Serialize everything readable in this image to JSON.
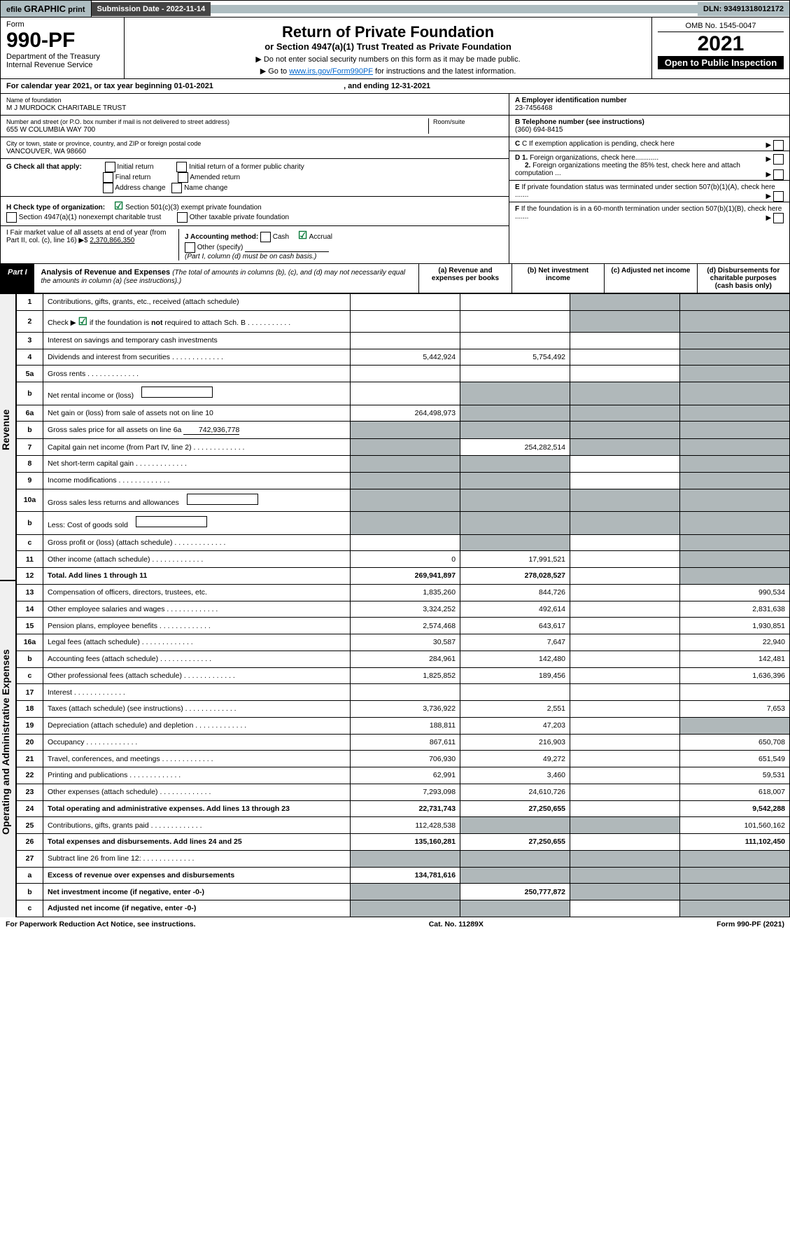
{
  "topbar": {
    "efile_pre": "efile",
    "efile_bold": "GRAPHIC",
    "efile_post": "print",
    "sub": "Submission Date - 2022-11-14",
    "dln": "DLN: 93491318012172"
  },
  "header": {
    "form_label": "Form",
    "form_no": "990-PF",
    "dept": "Department of the Treasury\nInternal Revenue Service",
    "title": "Return of Private Foundation",
    "subtitle": "or Section 4947(a)(1) Trust Treated as Private Foundation",
    "ssn": "▶ Do not enter social security numbers on this form as it may be made public.",
    "goto_pre": "▶ Go to ",
    "goto_link": "www.irs.gov/Form990PF",
    "goto_post": " for instructions and the latest information.",
    "omb": "OMB No. 1545-0047",
    "year": "2021",
    "open": "Open to Public Inspection"
  },
  "calrow": {
    "text_pre": "For calendar year 2021, or tax year beginning ",
    "begin": "01-01-2021",
    "mid": ", and ending ",
    "end": "12-31-2021"
  },
  "entity": {
    "name_label": "Name of foundation",
    "name": "M J MURDOCK CHARITABLE TRUST",
    "street_label": "Number and street (or P.O. box number if mail is not delivered to street address)",
    "street": "655 W COLUMBIA WAY 700",
    "room_label": "Room/suite",
    "city_label": "City or town, state or province, country, and ZIP or foreign postal code",
    "city": "VANCOUVER, WA  98660",
    "ein_label": "A Employer identification number",
    "ein": "23-7456468",
    "tel_label": "B Telephone number (see instructions)",
    "tel": "(360) 694-8415",
    "c_label": "C If exemption application is pending, check here",
    "d1_label": "D 1. Foreign organizations, check here............",
    "d2_label": "2. Foreign organizations meeting the 85% test, check here and attach computation ...",
    "e_label": "E If private foundation status was terminated under section 507(b)(1)(A), check here .......",
    "f_label": "F If the foundation is in a 60-month termination under section 507(b)(1)(B), check here ......."
  },
  "g": {
    "label": "G Check all that apply:",
    "o1": "Initial return",
    "o2": "Final return",
    "o3": "Address change",
    "o4": "Initial return of a former public charity",
    "o5": "Amended return",
    "o6": "Name change"
  },
  "h": {
    "label": "H Check type of organization:",
    "o1": "Section 501(c)(3) exempt private foundation",
    "o2": "Section 4947(a)(1) nonexempt charitable trust",
    "o3": "Other taxable private foundation"
  },
  "ij": {
    "i_label": "I Fair market value of all assets at end of year (from Part II, col. (c), line 16) ▶$ ",
    "i_val": "2,370,866,350",
    "j_label": "J Accounting method:",
    "cash": "Cash",
    "accrual": "Accrual",
    "other": "Other (specify)",
    "note": "(Part I, column (d) must be on cash basis.)"
  },
  "part1": {
    "part_label": "Part I",
    "title": "Analysis of Revenue and Expenses",
    "title_note": "(The total of amounts in columns (b), (c), and (d) may not necessarily equal the amounts in column (a) (see instructions).)",
    "cols": {
      "a": "(a) Revenue and expenses per books",
      "b": "(b) Net investment income",
      "c": "(c) Adjusted net income",
      "d": "(d) Disbursements for charitable purposes (cash basis only)"
    },
    "side_rev": "Revenue",
    "side_exp": "Operating and Administrative Expenses",
    "rows": [
      {
        "ln": "1",
        "desc": "Contributions, gifts, grants, etc., received (attach schedule)",
        "a": "",
        "b": "",
        "c": "g",
        "d": "g"
      },
      {
        "ln": "2",
        "desc": "Check ▶ ✔ if the foundation is not required to attach Sch. B",
        "a": "",
        "b": "",
        "c": "g",
        "d": "g",
        "checkmark": true
      },
      {
        "ln": "3",
        "desc": "Interest on savings and temporary cash investments",
        "a": "",
        "b": "",
        "c": "",
        "d": "g"
      },
      {
        "ln": "4",
        "desc": "Dividends and interest from securities",
        "a": "5,442,924",
        "b": "5,754,492",
        "c": "",
        "d": "g"
      },
      {
        "ln": "5a",
        "desc": "Gross rents",
        "a": "",
        "b": "",
        "c": "",
        "d": "g"
      },
      {
        "ln": "b",
        "desc": "Net rental income or (loss)",
        "a": "",
        "b": "g",
        "c": "g",
        "d": "g",
        "inline": true
      },
      {
        "ln": "6a",
        "desc": "Net gain or (loss) from sale of assets not on line 10",
        "a": "264,498,973",
        "b": "g",
        "c": "g",
        "d": "g"
      },
      {
        "ln": "b",
        "desc": "Gross sales price for all assets on line 6a",
        "a": "g",
        "b": "g",
        "c": "g",
        "d": "g",
        "inline_val": "742,936,778"
      },
      {
        "ln": "7",
        "desc": "Capital gain net income (from Part IV, line 2)",
        "a": "g",
        "b": "254,282,514",
        "c": "g",
        "d": "g"
      },
      {
        "ln": "8",
        "desc": "Net short-term capital gain",
        "a": "g",
        "b": "g",
        "c": "",
        "d": "g"
      },
      {
        "ln": "9",
        "desc": "Income modifications",
        "a": "g",
        "b": "g",
        "c": "",
        "d": "g"
      },
      {
        "ln": "10a",
        "desc": "Gross sales less returns and allowances",
        "a": "g",
        "b": "g",
        "c": "g",
        "d": "g",
        "inline": true
      },
      {
        "ln": "b",
        "desc": "Less: Cost of goods sold",
        "a": "g",
        "b": "g",
        "c": "g",
        "d": "g",
        "inline": true
      },
      {
        "ln": "c",
        "desc": "Gross profit or (loss) (attach schedule)",
        "a": "",
        "b": "g",
        "c": "",
        "d": "g"
      },
      {
        "ln": "11",
        "desc": "Other income (attach schedule)",
        "a": "0",
        "b": "17,991,521",
        "c": "",
        "d": "g"
      },
      {
        "ln": "12",
        "desc": "Total. Add lines 1 through 11",
        "a": "269,941,897",
        "b": "278,028,527",
        "c": "",
        "d": "g",
        "bold": true
      },
      {
        "ln": "13",
        "desc": "Compensation of officers, directors, trustees, etc.",
        "a": "1,835,260",
        "b": "844,726",
        "c": "",
        "d": "990,534"
      },
      {
        "ln": "14",
        "desc": "Other employee salaries and wages",
        "a": "3,324,252",
        "b": "492,614",
        "c": "",
        "d": "2,831,638"
      },
      {
        "ln": "15",
        "desc": "Pension plans, employee benefits",
        "a": "2,574,468",
        "b": "643,617",
        "c": "",
        "d": "1,930,851"
      },
      {
        "ln": "16a",
        "desc": "Legal fees (attach schedule)",
        "a": "30,587",
        "b": "7,647",
        "c": "",
        "d": "22,940"
      },
      {
        "ln": "b",
        "desc": "Accounting fees (attach schedule)",
        "a": "284,961",
        "b": "142,480",
        "c": "",
        "d": "142,481"
      },
      {
        "ln": "c",
        "desc": "Other professional fees (attach schedule)",
        "a": "1,825,852",
        "b": "189,456",
        "c": "",
        "d": "1,636,396"
      },
      {
        "ln": "17",
        "desc": "Interest",
        "a": "",
        "b": "",
        "c": "",
        "d": ""
      },
      {
        "ln": "18",
        "desc": "Taxes (attach schedule) (see instructions)",
        "a": "3,736,922",
        "b": "2,551",
        "c": "",
        "d": "7,653"
      },
      {
        "ln": "19",
        "desc": "Depreciation (attach schedule) and depletion",
        "a": "188,811",
        "b": "47,203",
        "c": "",
        "d": "g"
      },
      {
        "ln": "20",
        "desc": "Occupancy",
        "a": "867,611",
        "b": "216,903",
        "c": "",
        "d": "650,708"
      },
      {
        "ln": "21",
        "desc": "Travel, conferences, and meetings",
        "a": "706,930",
        "b": "49,272",
        "c": "",
        "d": "651,549"
      },
      {
        "ln": "22",
        "desc": "Printing and publications",
        "a": "62,991",
        "b": "3,460",
        "c": "",
        "d": "59,531"
      },
      {
        "ln": "23",
        "desc": "Other expenses (attach schedule)",
        "a": "7,293,098",
        "b": "24,610,726",
        "c": "",
        "d": "618,007"
      },
      {
        "ln": "24",
        "desc": "Total operating and administrative expenses. Add lines 13 through 23",
        "a": "22,731,743",
        "b": "27,250,655",
        "c": "",
        "d": "9,542,288",
        "bold": true
      },
      {
        "ln": "25",
        "desc": "Contributions, gifts, grants paid",
        "a": "112,428,538",
        "b": "g",
        "c": "g",
        "d": "101,560,162"
      },
      {
        "ln": "26",
        "desc": "Total expenses and disbursements. Add lines 24 and 25",
        "a": "135,160,281",
        "b": "27,250,655",
        "c": "",
        "d": "111,102,450",
        "bold": true
      },
      {
        "ln": "27",
        "desc": "Subtract line 26 from line 12:",
        "a": "g",
        "b": "g",
        "c": "g",
        "d": "g"
      },
      {
        "ln": "a",
        "desc": "Excess of revenue over expenses and disbursements",
        "a": "134,781,616",
        "b": "g",
        "c": "g",
        "d": "g",
        "bold": true
      },
      {
        "ln": "b",
        "desc": "Net investment income (if negative, enter -0-)",
        "a": "g",
        "b": "250,777,872",
        "c": "g",
        "d": "g",
        "bold": true
      },
      {
        "ln": "c",
        "desc": "Adjusted net income (if negative, enter -0-)",
        "a": "g",
        "b": "g",
        "c": "",
        "d": "g",
        "bold": true
      }
    ]
  },
  "footer": {
    "left": "For Paperwork Reduction Act Notice, see instructions.",
    "mid": "Cat. No. 11289X",
    "right": "Form 990-PF (2021)"
  },
  "colors": {
    "grey": "#b0b8ba",
    "topgrey": "#aebdc1",
    "black": "#000",
    "green": "#0a7a3a",
    "link": "#0066cc"
  }
}
